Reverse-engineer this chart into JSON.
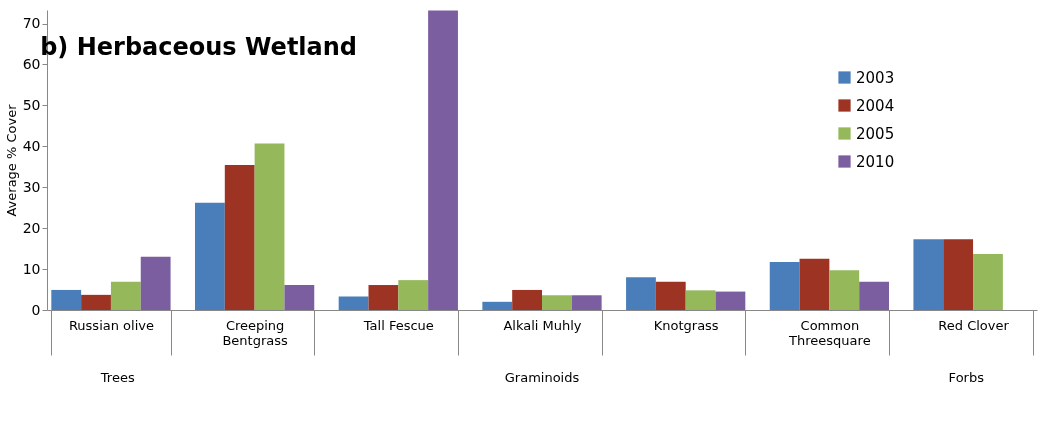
{
  "chart_data": {
    "type": "bar",
    "title": "b) Herbaceous Wetland",
    "ylabel": "Average % Cover",
    "categories": [
      "Russian olive",
      "Creeping Bentgrass",
      "Tall Fescue",
      "Alkali Muhly",
      "Knotgrass",
      "Common Threesquare",
      "Red Clover"
    ],
    "series": [
      {
        "name": "2003",
        "color": "#4a7ebb",
        "values": [
          4.9,
          26.2,
          3.3,
          2.0,
          8.0,
          11.7,
          17.3
        ]
      },
      {
        "name": "2004",
        "color": "#9c3323",
        "values": [
          3.7,
          35.4,
          6.1,
          4.9,
          6.9,
          12.5,
          17.3
        ]
      },
      {
        "name": "2005",
        "color": "#94b85a",
        "values": [
          6.9,
          40.7,
          7.3,
          3.6,
          4.8,
          9.7,
          13.7
        ]
      },
      {
        "name": "2010",
        "color": "#7b5ea0",
        "values": [
          13.0,
          6.1,
          73.2,
          3.6,
          4.5,
          6.9,
          null
        ]
      }
    ],
    "ylim": [
      0,
      73.3
    ],
    "yticks": [
      0,
      10,
      20,
      30,
      40,
      50,
      60,
      70
    ],
    "grid": false,
    "legend": "top right",
    "annotations": [
      "Trees",
      "Graminoids",
      "Forbs"
    ]
  }
}
